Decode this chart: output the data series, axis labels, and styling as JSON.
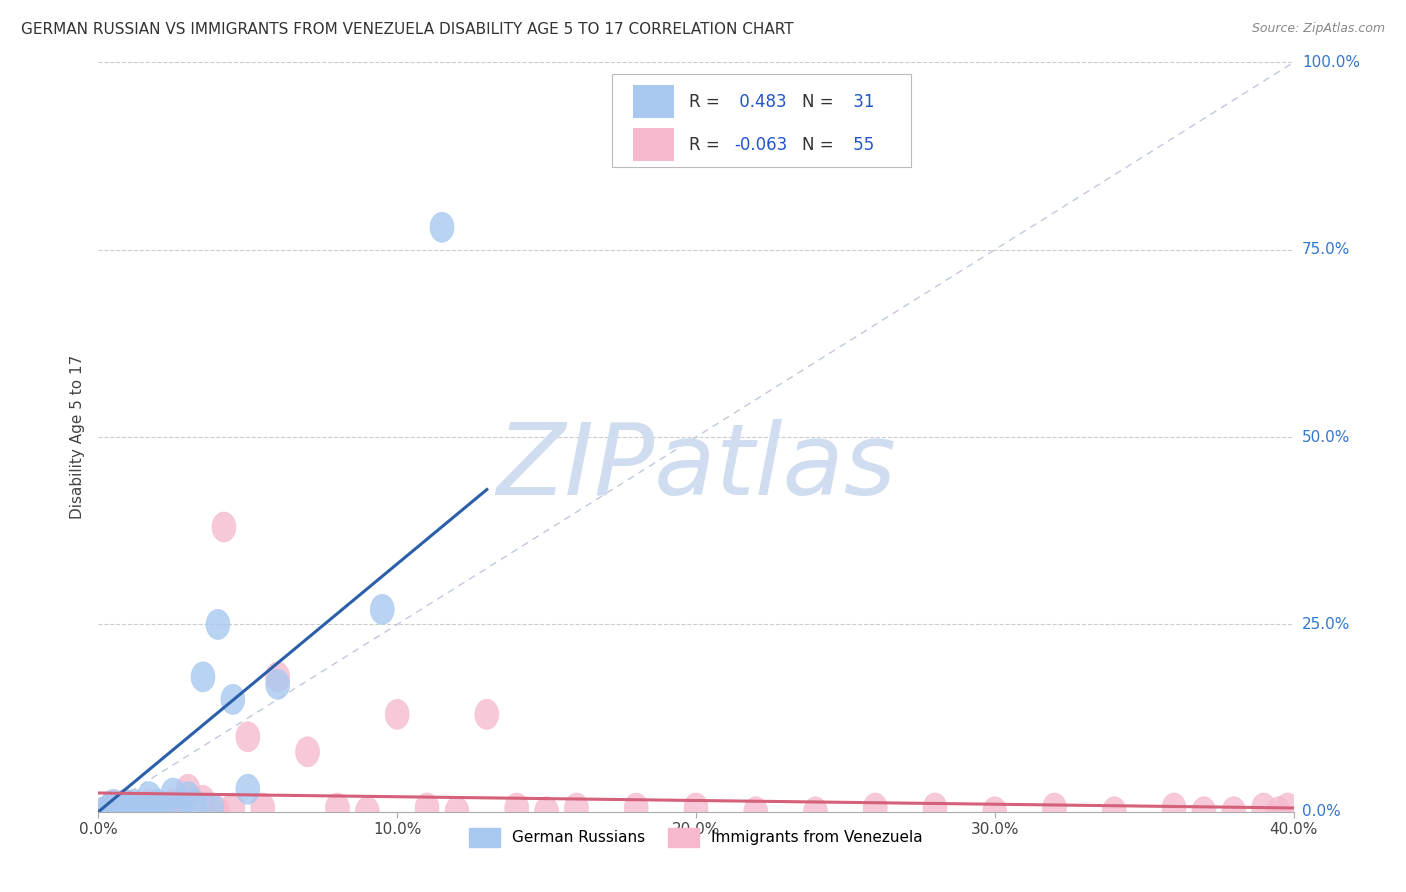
{
  "title": "GERMAN RUSSIAN VS IMMIGRANTS FROM VENEZUELA DISABILITY AGE 5 TO 17 CORRELATION CHART",
  "source": "Source: ZipAtlas.com",
  "ylabel": "Disability Age 5 to 17",
  "xlim": [
    0.0,
    0.4
  ],
  "ylim": [
    0.0,
    1.0
  ],
  "xticks": [
    0.0,
    0.1,
    0.2,
    0.3,
    0.4
  ],
  "xtick_labels": [
    "0.0%",
    "10.0%",
    "20.0%",
    "30.0%",
    "40.0%"
  ],
  "yticks": [
    0.0,
    0.25,
    0.5,
    0.75,
    1.0
  ],
  "ytick_labels": [
    "0.0%",
    "25.0%",
    "50.0%",
    "75.0%",
    "100.0%"
  ],
  "blue_R": 0.483,
  "blue_N": 31,
  "pink_R": -0.063,
  "pink_N": 55,
  "blue_color": "#a8c8f0",
  "pink_color": "#f5b8cc",
  "blue_line_color": "#2b5faa",
  "pink_line_color": "#d4607a",
  "diagonal_color": "#b8c4d8",
  "watermark": "ZIPatlas",
  "watermark_color": "#d0ddf0",
  "legend_R_color": "#2255cc",
  "blue_x": [
    0.002,
    0.003,
    0.004,
    0.005,
    0.005,
    0.006,
    0.007,
    0.008,
    0.009,
    0.01,
    0.011,
    0.012,
    0.013,
    0.015,
    0.016,
    0.017,
    0.018,
    0.02,
    0.022,
    0.025,
    0.027,
    0.03,
    0.032,
    0.035,
    0.038,
    0.04,
    0.045,
    0.05,
    0.06,
    0.095,
    0.115
  ],
  "blue_y": [
    0.0,
    0.0,
    0.005,
    0.0,
    0.01,
    0.0,
    0.005,
    0.0,
    0.01,
    0.005,
    0.0,
    0.01,
    0.0,
    0.005,
    0.0,
    0.02,
    0.005,
    0.01,
    0.0,
    0.025,
    0.005,
    0.02,
    0.01,
    0.18,
    0.005,
    0.25,
    0.15,
    0.03,
    0.17,
    0.27,
    0.78
  ],
  "pink_x": [
    0.002,
    0.003,
    0.004,
    0.005,
    0.006,
    0.007,
    0.008,
    0.009,
    0.01,
    0.011,
    0.012,
    0.013,
    0.014,
    0.015,
    0.016,
    0.017,
    0.018,
    0.019,
    0.02,
    0.022,
    0.025,
    0.027,
    0.03,
    0.035,
    0.04,
    0.042,
    0.045,
    0.05,
    0.055,
    0.06,
    0.07,
    0.08,
    0.09,
    0.1,
    0.11,
    0.12,
    0.13,
    0.14,
    0.15,
    0.16,
    0.18,
    0.2,
    0.22,
    0.24,
    0.26,
    0.28,
    0.3,
    0.32,
    0.34,
    0.36,
    0.37,
    0.38,
    0.39,
    0.395,
    0.398
  ],
  "pink_y": [
    0.0,
    0.0,
    0.005,
    0.0,
    0.0,
    0.005,
    0.0,
    0.0,
    0.005,
    0.0,
    0.005,
    0.0,
    0.0,
    0.005,
    0.0,
    0.01,
    0.0,
    0.0,
    0.005,
    0.0,
    0.01,
    0.0,
    0.03,
    0.015,
    0.0,
    0.38,
    0.005,
    0.1,
    0.005,
    0.18,
    0.08,
    0.005,
    0.0,
    0.13,
    0.005,
    0.0,
    0.13,
    0.005,
    0.0,
    0.005,
    0.005,
    0.005,
    0.0,
    0.0,
    0.005,
    0.005,
    0.0,
    0.005,
    0.0,
    0.005,
    0.0,
    0.0,
    0.005,
    0.0,
    0.005
  ],
  "blue_line_x": [
    0.0,
    0.13
  ],
  "blue_line_y": [
    0.0,
    0.43
  ],
  "pink_line_x": [
    0.0,
    0.4
  ],
  "pink_line_y": [
    0.025,
    0.005
  ]
}
